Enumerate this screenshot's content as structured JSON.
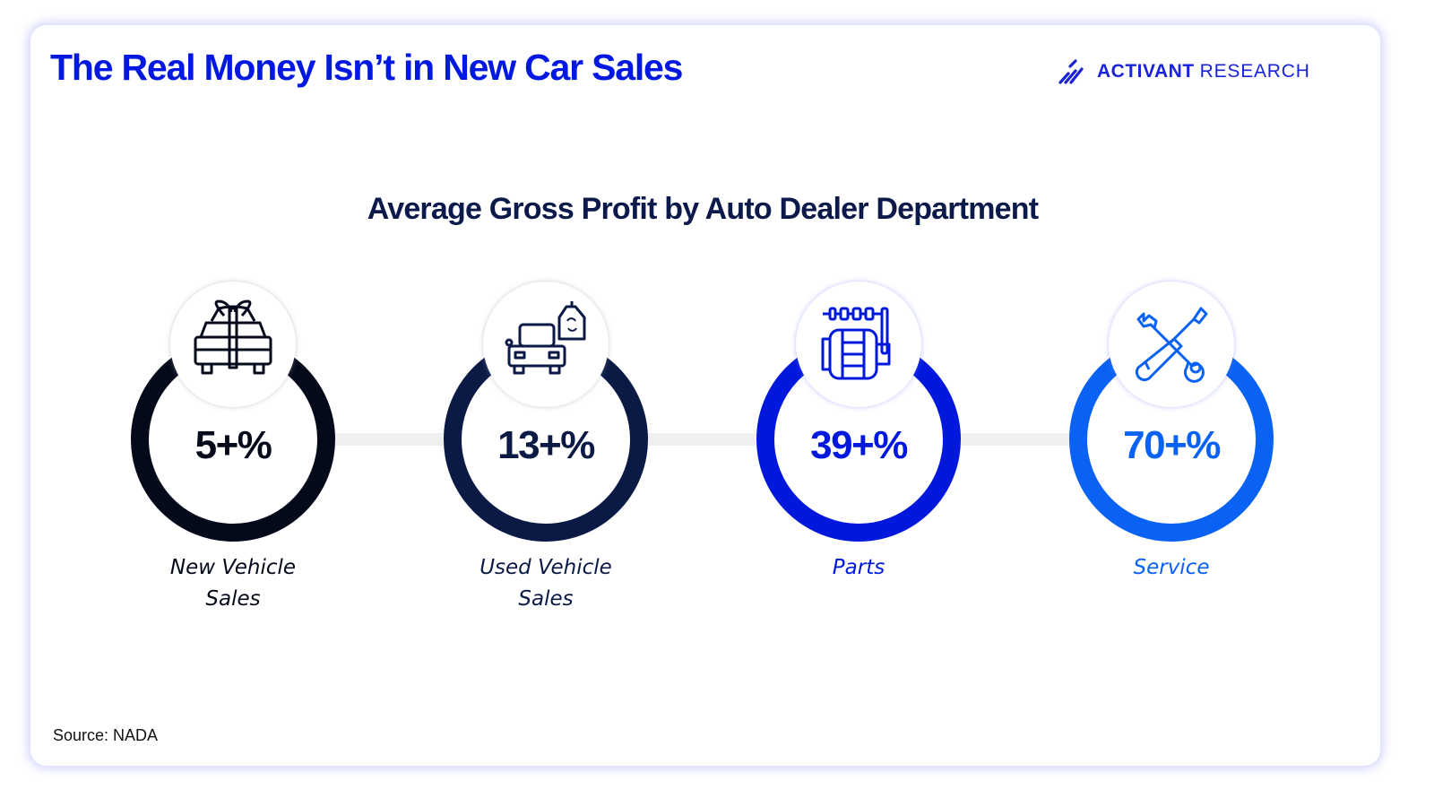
{
  "header": {
    "title": "The Real Money Isn’t in New Car Sales",
    "logo_word1": "ACTIVANT",
    "logo_word2": "RESEARCH"
  },
  "footer": {
    "source": "Source: NADA"
  },
  "colors": {
    "title": "#0018e0",
    "subtitle": "#0b1a4a",
    "connector": "#efefef"
  },
  "chart_data": {
    "type": "infographic-rings",
    "title": "Average Gross Profit by Auto Dealer Department",
    "categories": [
      "New Vehicle Sales",
      "Used Vehicle Sales",
      "Parts",
      "Service"
    ],
    "values": [
      5,
      13,
      39,
      70
    ],
    "unit": "%",
    "items": [
      {
        "label_line1": "New Vehicle",
        "label_line2": "Sales",
        "value_text": "5+%",
        "value": 5,
        "icon": "gift-car-icon",
        "color": "#040a1a"
      },
      {
        "label_line1": "Used Vehicle",
        "label_line2": "Sales",
        "value_text": "13+%",
        "value": 13,
        "icon": "used-car-tag-icon",
        "color": "#0b1a45"
      },
      {
        "label_line1": "Parts",
        "label_line2": "",
        "value_text": "39+%",
        "value": 39,
        "icon": "engine-parts-icon",
        "color": "#0018dc"
      },
      {
        "label_line1": "Service",
        "label_line2": "",
        "value_text": "70+%",
        "value": 70,
        "icon": "wrench-screwdriver-icon",
        "color": "#0a62f5"
      }
    ]
  }
}
